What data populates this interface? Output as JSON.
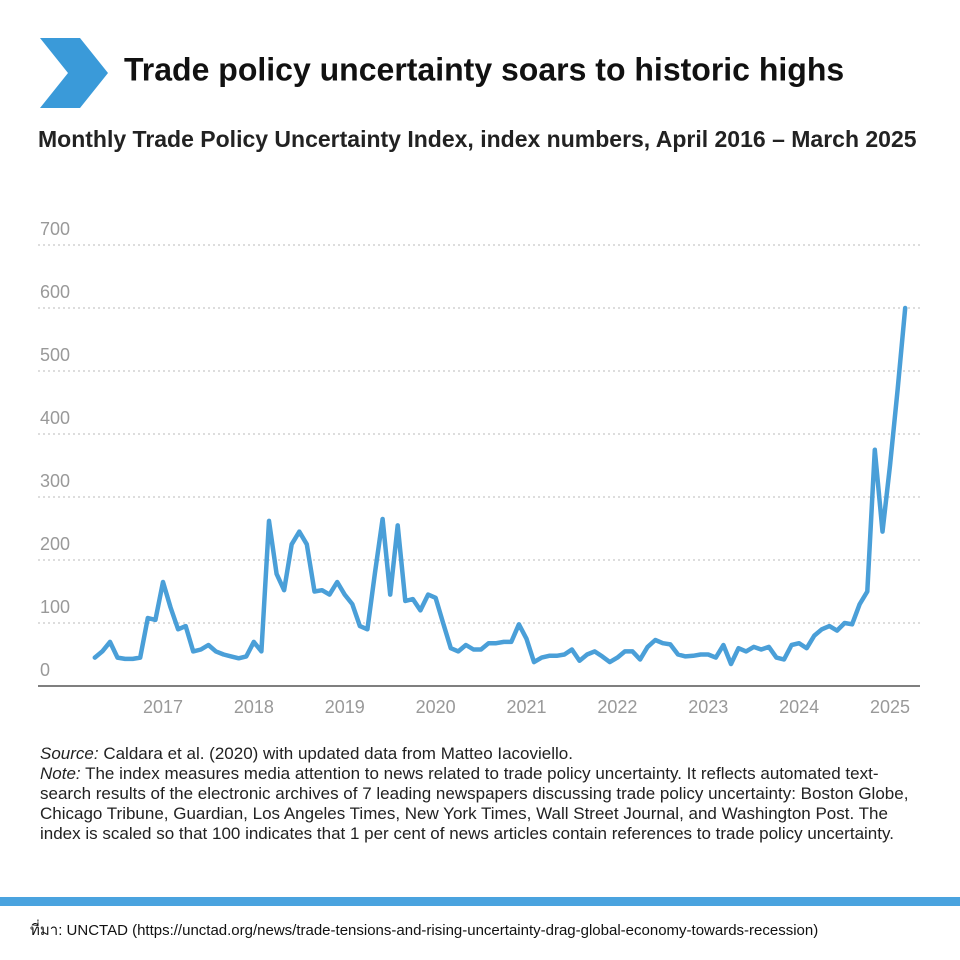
{
  "chart_data": {
    "type": "line",
    "title": "Trade policy uncertainty soars to historic highs",
    "subtitle": "Monthly Trade Policy Uncertainty Index, index numbers, April 2016 – March 2025",
    "x": [
      2016.25,
      2016.333,
      2016.417,
      2016.5,
      2016.583,
      2016.667,
      2016.75,
      2016.833,
      2016.917,
      2017,
      2017.083,
      2017.167,
      2017.25,
      2017.333,
      2017.417,
      2017.5,
      2017.583,
      2017.667,
      2017.75,
      2017.833,
      2017.917,
      2018,
      2018.083,
      2018.167,
      2018.25,
      2018.333,
      2018.417,
      2018.5,
      2018.583,
      2018.667,
      2018.75,
      2018.833,
      2018.917,
      2019,
      2019.083,
      2019.167,
      2019.25,
      2019.333,
      2019.417,
      2019.5,
      2019.583,
      2019.667,
      2019.75,
      2019.833,
      2019.917,
      2020,
      2020.083,
      2020.167,
      2020.25,
      2020.333,
      2020.417,
      2020.5,
      2020.583,
      2020.667,
      2020.75,
      2020.833,
      2020.917,
      2021,
      2021.083,
      2021.167,
      2021.25,
      2021.333,
      2021.417,
      2021.5,
      2021.583,
      2021.667,
      2021.75,
      2021.833,
      2021.917,
      2022,
      2022.083,
      2022.167,
      2022.25,
      2022.333,
      2022.417,
      2022.5,
      2022.583,
      2022.667,
      2022.75,
      2022.833,
      2022.917,
      2023,
      2023.083,
      2023.167,
      2023.25,
      2023.333,
      2023.417,
      2023.5,
      2023.583,
      2023.667,
      2023.75,
      2023.833,
      2023.917,
      2024,
      2024.083,
      2024.167,
      2024.25,
      2024.333,
      2024.417,
      2024.5,
      2024.583,
      2024.667,
      2024.75,
      2024.833,
      2024.917,
      2025,
      2025.083,
      2025.167
    ],
    "values": [
      45,
      55,
      70,
      45,
      43,
      43,
      45,
      108,
      105,
      165,
      125,
      90,
      95,
      55,
      58,
      65,
      55,
      50,
      47,
      44,
      47,
      70,
      55,
      262,
      178,
      152,
      225,
      245,
      225,
      150,
      152,
      145,
      165,
      145,
      130,
      95,
      90,
      180,
      265,
      145,
      255,
      135,
      138,
      120,
      145,
      140,
      100,
      60,
      55,
      65,
      58,
      58,
      68,
      68,
      70,
      70,
      98,
      75,
      38,
      45,
      48,
      48,
      50,
      58,
      40,
      50,
      55,
      47,
      38,
      45,
      55,
      55,
      42,
      62,
      73,
      68,
      66,
      50,
      47,
      48,
      50,
      50,
      45,
      65,
      35,
      60,
      55,
      62,
      58,
      62,
      45,
      42,
      65,
      68,
      60,
      80,
      90,
      95,
      88,
      100,
      98,
      130,
      150,
      375,
      245,
      350,
      470,
      600
    ],
    "color": "#4a9fd8",
    "xlim": [
      2015.625,
      2025.33
    ],
    "xticks": [
      2017,
      2018,
      2019,
      2020,
      2021,
      2022,
      2023,
      2024,
      2025
    ],
    "ylim": [
      0,
      700
    ],
    "yticks": [
      0,
      100,
      200,
      300,
      400,
      500,
      600,
      700
    ],
    "grid": true,
    "source_label": "Source:",
    "source": "Caldara et al. (2020) with updated data from Matteo Iacoviello.",
    "note_label": "Note:",
    "note": "The index measures media attention to news related to trade policy uncertainty. It reflects automated text-search results of the electronic archives of 7 leading newspapers discussing trade policy uncertainty: Boston Globe, Chicago Tribune, Guardian, Los Angeles Times, New York Times, Wall Street Journal, and Washington Post. The index is scaled so that 100 indicates that 1 per cent of news articles contain references to trade policy uncertainty.",
    "footer": "ที่มา: UNCTAD (https://unctad.org/news/trade-tensions-and-rising-uncertainty-drag-global-economy-towards-recession)"
  }
}
